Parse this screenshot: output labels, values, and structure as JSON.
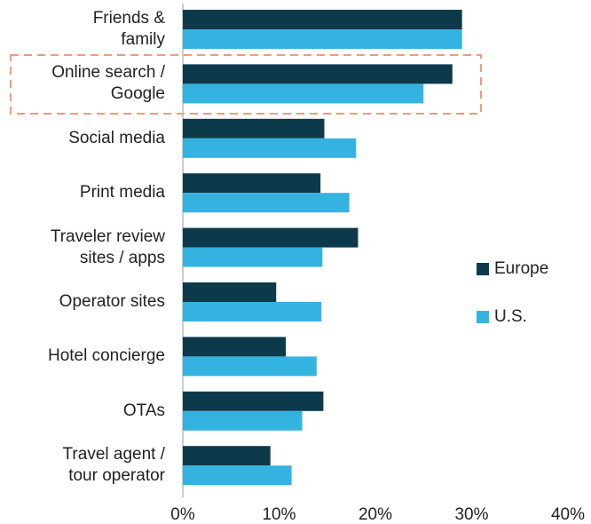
{
  "chart_data": {
    "type": "bar",
    "orientation": "horizontal",
    "categories": [
      "Friends &\nfamily",
      "Online search /\nGoogle",
      "Social media",
      "Print media",
      "Traveler review\nsites / apps",
      "Operator sites",
      "Hotel concierge",
      "OTAs",
      "Travel agent /\ntour operator"
    ],
    "series": [
      {
        "name": "Europe",
        "color": "#0c3a4b",
        "values": [
          29,
          28,
          14.7,
          14.3,
          18.2,
          9.7,
          10.7,
          14.6,
          9.1
        ]
      },
      {
        "name": "U.S.",
        "color": "#35b3e0",
        "values": [
          29,
          25,
          18,
          17.3,
          14.5,
          14.4,
          13.9,
          12.4,
          11.3
        ]
      }
    ],
    "xlim": [
      0,
      40
    ],
    "xticks": [
      {
        "value": 0,
        "label": "0%"
      },
      {
        "value": 10,
        "label": "10%"
      },
      {
        "value": 20,
        "label": "20%"
      },
      {
        "value": 30,
        "label": "30%"
      },
      {
        "value": 40,
        "label": "40%"
      }
    ],
    "grid": false,
    "legend": "right"
  }
}
